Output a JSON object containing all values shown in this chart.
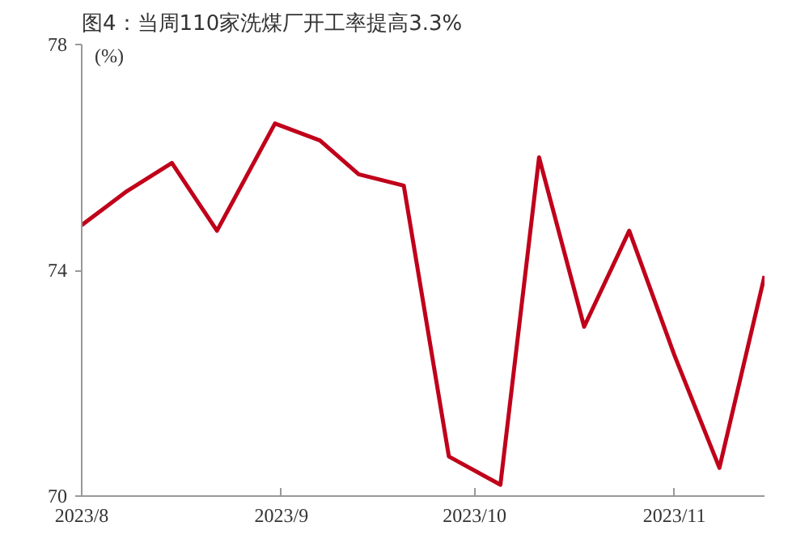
{
  "chart_data": {
    "type": "line",
    "title": "图4：当周110家洗煤厂开工率提高3.3%",
    "ylabel": "(%)",
    "x": [
      "2023-08-01",
      "2023-08-08",
      "2023-08-15",
      "2023-08-22",
      "2023-08-31",
      "2023-09-07",
      "2023-09-13",
      "2023-09-20",
      "2023-09-27",
      "2023-10-05",
      "2023-10-11",
      "2023-10-18",
      "2023-10-25",
      "2023-11-01",
      "2023-11-08",
      "2023-11-15"
    ],
    "series": [
      {
        "color": "#c0001a",
        "values": [
          74.8,
          75.4,
          75.9,
          74.7,
          76.6,
          76.3,
          75.7,
          75.5,
          70.7,
          70.2,
          76.0,
          73.0,
          74.7,
          72.5,
          70.5,
          73.9
        ]
      }
    ],
    "xlim": [
      "2023-08-01",
      "2023-11-15"
    ],
    "xticks": [
      {
        "value": "2023-08-01",
        "label": "2023/8"
      },
      {
        "value": "2023-09-01",
        "label": "2023/9"
      },
      {
        "value": "2023-10-01",
        "label": "2023/10"
      },
      {
        "value": "2023-11-01",
        "label": "2023/11"
      }
    ],
    "ylim": [
      70,
      78
    ],
    "yticks": [
      70,
      74,
      78
    ],
    "grid": false,
    "marker": "none",
    "line_style": "solid"
  }
}
